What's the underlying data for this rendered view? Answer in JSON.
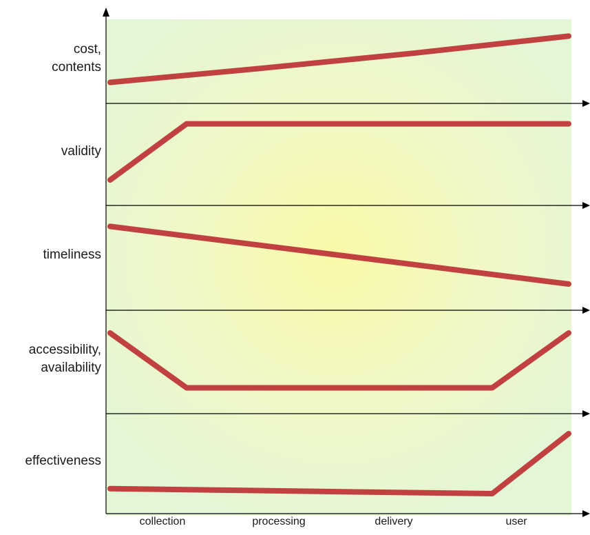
{
  "chart_data": {
    "type": "line",
    "categories": [
      "collection",
      "processing",
      "delivery",
      "user"
    ],
    "bands": [
      {
        "label_lines": [
          "cost,",
          "contents"
        ],
        "points": [
          [
            0,
            0.25
          ],
          [
            1,
            0.42
          ],
          [
            2,
            0.6
          ],
          [
            3,
            0.8
          ]
        ]
      },
      {
        "label_lines": [
          "validity"
        ],
        "points": [
          [
            0,
            0.25
          ],
          [
            0.5,
            0.8
          ],
          [
            3,
            0.8
          ]
        ]
      },
      {
        "label_lines": [
          "timeliness"
        ],
        "points": [
          [
            0,
            0.8
          ],
          [
            3,
            0.25
          ]
        ]
      },
      {
        "label_lines": [
          "accessibility,",
          "availability"
        ],
        "points": [
          [
            0,
            0.78
          ],
          [
            0.5,
            0.25
          ],
          [
            2.5,
            0.25
          ],
          [
            3,
            0.78
          ]
        ]
      },
      {
        "label_lines": [
          "effectiveness"
        ],
        "points": [
          [
            0,
            0.25
          ],
          [
            2.5,
            0.2
          ],
          [
            3,
            0.8
          ]
        ]
      }
    ],
    "colors": {
      "series": "#c0413f",
      "axis": "#000000"
    }
  }
}
